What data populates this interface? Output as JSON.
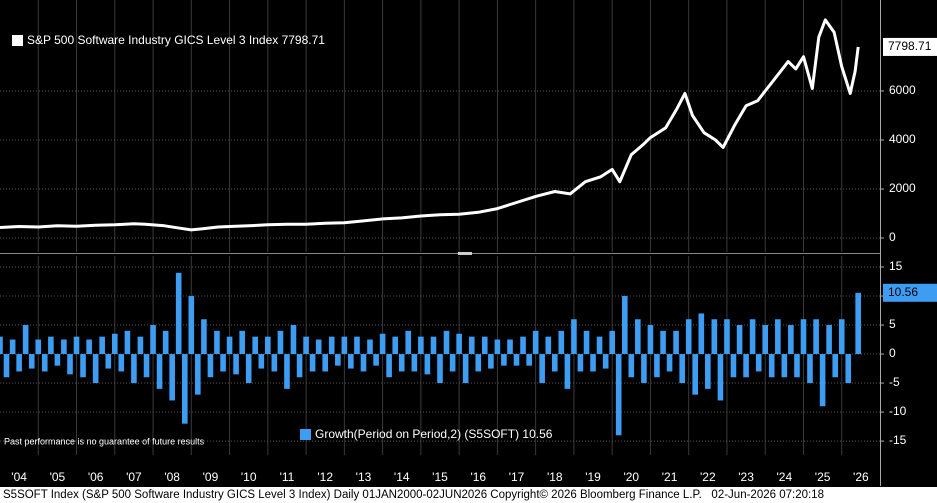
{
  "chart_data": [
    {
      "type": "line",
      "series": [
        {
          "name": "S&P 500 Software Industry GICS Level 3 Index 7798.71",
          "color": "#ffffff",
          "x": [
            2004,
            2004.5,
            2005,
            2005.5,
            2006,
            2006.5,
            2007,
            2007.5,
            2007.8,
            2008.3,
            2008.7,
            2009,
            2009.3,
            2009.7,
            2010,
            2010.5,
            2011,
            2011.5,
            2012,
            2012.5,
            2013,
            2013.5,
            2014,
            2014.5,
            2015,
            2015.5,
            2016,
            2016.5,
            2017,
            2017.5,
            2018,
            2018.5,
            2018.9,
            2019.3,
            2019.7,
            2020,
            2020.2,
            2020.5,
            2020.8,
            2021,
            2021.4,
            2021.7,
            2021.9,
            2022.1,
            2022.4,
            2022.7,
            2022.9,
            2023.2,
            2023.5,
            2023.8,
            2024,
            2024.3,
            2024.6,
            2024.8,
            2025,
            2025.23,
            2025.4,
            2025.57,
            2025.8,
            2026,
            2026.22,
            2026.35,
            2026.43
          ],
          "values": [
            430,
            470,
            450,
            500,
            480,
            520,
            540,
            580,
            560,
            500,
            400,
            330,
            380,
            450,
            470,
            500,
            540,
            560,
            560,
            600,
            620,
            700,
            780,
            820,
            900,
            950,
            970,
            1050,
            1200,
            1450,
            1700,
            1900,
            1800,
            2300,
            2500,
            2800,
            2300,
            3400,
            3800,
            4100,
            4500,
            5300,
            5900,
            5000,
            4300,
            4000,
            3700,
            4600,
            5400,
            5600,
            6000,
            6600,
            7200,
            6900,
            7400,
            6100,
            8200,
            8900,
            8400,
            7000,
            5900,
            6800,
            7798.71
          ]
        }
      ],
      "xlim": [
        2004,
        2027
      ],
      "ylim": [
        -571,
        9714
      ],
      "yticks": [
        0,
        2000,
        4000,
        6000
      ],
      "grid": true
    },
    {
      "type": "bar",
      "series": [
        {
          "name": "Growth(Period on Period,2) (S5SOFT) 10.56",
          "color": "#3d9df2",
          "x": [
            2004,
            2004.17,
            2004.33,
            2004.5,
            2004.67,
            2004.83,
            2005,
            2005.17,
            2005.33,
            2005.5,
            2005.67,
            2005.83,
            2006,
            2006.17,
            2006.33,
            2006.5,
            2006.67,
            2006.83,
            2007,
            2007.17,
            2007.33,
            2007.5,
            2007.67,
            2007.83,
            2008,
            2008.17,
            2008.33,
            2008.5,
            2008.67,
            2008.83,
            2009,
            2009.17,
            2009.33,
            2009.5,
            2009.67,
            2009.83,
            2010,
            2010.17,
            2010.33,
            2010.5,
            2010.67,
            2010.83,
            2011,
            2011.17,
            2011.33,
            2011.5,
            2011.67,
            2011.83,
            2012,
            2012.17,
            2012.33,
            2012.5,
            2012.67,
            2012.83,
            2013,
            2013.17,
            2013.33,
            2013.5,
            2013.67,
            2013.83,
            2014,
            2014.17,
            2014.33,
            2014.5,
            2014.67,
            2014.83,
            2015,
            2015.17,
            2015.33,
            2015.5,
            2015.67,
            2015.83,
            2016,
            2016.17,
            2016.33,
            2016.5,
            2016.67,
            2016.83,
            2017,
            2017.17,
            2017.33,
            2017.5,
            2017.67,
            2017.83,
            2018,
            2018.17,
            2018.33,
            2018.5,
            2018.67,
            2018.83,
            2019,
            2019.17,
            2019.33,
            2019.5,
            2019.67,
            2019.83,
            2020,
            2020.17,
            2020.33,
            2020.5,
            2020.67,
            2020.83,
            2021,
            2021.17,
            2021.33,
            2021.5,
            2021.67,
            2021.83,
            2022,
            2022.17,
            2022.33,
            2022.5,
            2022.67,
            2022.83,
            2023,
            2023.17,
            2023.33,
            2023.5,
            2023.67,
            2023.83,
            2024,
            2024.17,
            2024.33,
            2024.5,
            2024.67,
            2024.83,
            2025,
            2025.17,
            2025.33,
            2025.5,
            2025.67,
            2025.83,
            2026,
            2026.17,
            2026.43
          ],
          "values": [
            3,
            -4,
            2.5,
            -3,
            5,
            -2.5,
            2.5,
            -3,
            3,
            -2,
            2.5,
            -3.5,
            3,
            -4,
            2.5,
            -5,
            3,
            -2.5,
            3.5,
            -3,
            4,
            -5,
            3,
            -4,
            5,
            -6,
            4,
            -8,
            14,
            -12,
            10,
            -7,
            6,
            -4,
            4,
            -3,
            3,
            -3.5,
            4,
            -5,
            3,
            -2.5,
            3,
            -3,
            4,
            -6,
            5,
            -4,
            3,
            -3,
            2.5,
            -3,
            3,
            -2,
            3,
            -2.5,
            3,
            -3,
            2.5,
            -2,
            3.5,
            -4,
            3,
            -3,
            4,
            -3,
            3,
            -3.5,
            3,
            -5,
            4,
            -3,
            3.5,
            -5,
            3,
            -3,
            3,
            -2.5,
            2.5,
            -2,
            2.5,
            -2,
            3,
            -2,
            4,
            -5,
            3,
            -3,
            4,
            -6,
            6,
            -3,
            4,
            -3,
            3,
            -2.5,
            4,
            -14,
            10,
            -4,
            6,
            -5,
            5,
            -4,
            4,
            -3,
            4,
            -5,
            6,
            -7,
            7,
            -6,
            6,
            -8,
            6,
            -4,
            5,
            -4,
            6,
            -3,
            5,
            -4,
            6,
            -4,
            5,
            -4,
            6,
            -5,
            6,
            -9,
            5,
            -4,
            6,
            -5,
            10.56
          ]
        }
      ],
      "xlim": [
        2004,
        2027
      ],
      "ylim": [
        -17.4,
        16.9
      ],
      "yticks": [
        15,
        10,
        5,
        0,
        -5,
        -10,
        -15
      ],
      "xticks": [
        {
          "value": 2004,
          "label": "'04"
        },
        {
          "value": 2005,
          "label": "'05"
        },
        {
          "value": 2006,
          "label": "'06"
        },
        {
          "value": 2007,
          "label": "'07"
        },
        {
          "value": 2008,
          "label": "'08"
        },
        {
          "value": 2009,
          "label": "'09"
        },
        {
          "value": 2010,
          "label": "'10"
        },
        {
          "value": 2011,
          "label": "'11"
        },
        {
          "value": 2012,
          "label": "'12"
        },
        {
          "value": 2013,
          "label": "'13"
        },
        {
          "value": 2014,
          "label": "'14"
        },
        {
          "value": 2015,
          "label": "'15"
        },
        {
          "value": 2016,
          "label": "'16"
        },
        {
          "value": 2017,
          "label": "'17"
        },
        {
          "value": 2018,
          "label": "'18"
        },
        {
          "value": 2019,
          "label": "'19"
        },
        {
          "value": 2020,
          "label": "'20"
        },
        {
          "value": 2021,
          "label": "'21"
        },
        {
          "value": 2022,
          "label": "'22"
        },
        {
          "value": 2023,
          "label": "'23"
        },
        {
          "value": 2024,
          "label": "'24"
        },
        {
          "value": 2025,
          "label": "'25"
        },
        {
          "value": 2026,
          "label": "'26"
        }
      ],
      "grid": true,
      "annotation": "Past performance is no guarantee of future results"
    }
  ],
  "footer": "S5SOFT Index (S&P 500 Software Industry GICS Level 3 Index) Daily 01JAN2000-02JUN2026 Copyright© 2026 Bloomberg Finance L.P.   02-Jun-2026 07:20:18"
}
